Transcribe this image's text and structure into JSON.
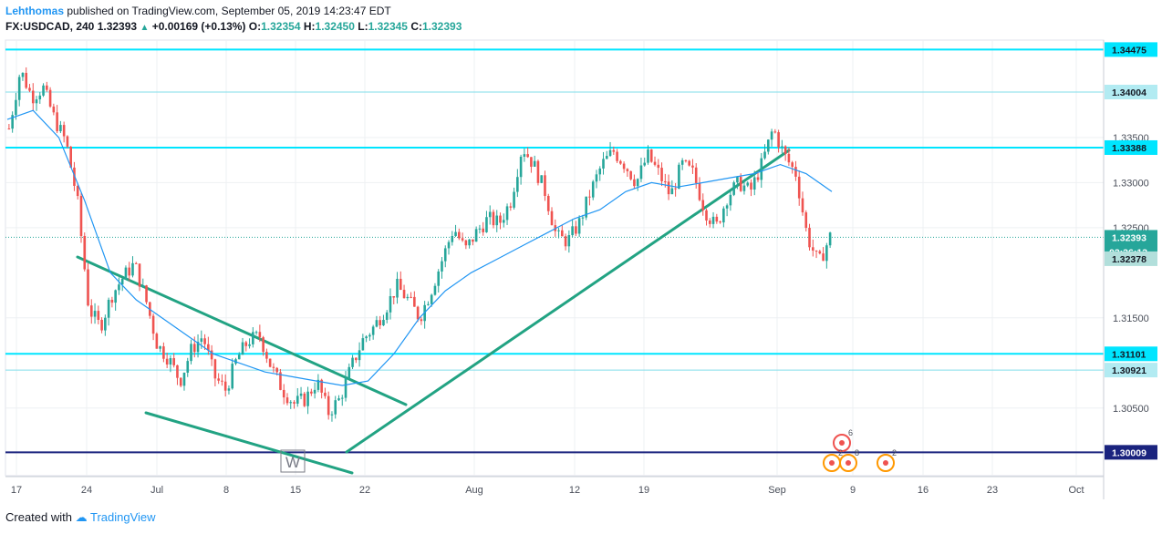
{
  "header": {
    "author": "Lehthomas",
    "published_text": "published on TradingView.com, September 05, 2019 14:23:47 EDT",
    "symbol": "FX:USDCAD, 240",
    "last": "1.32393",
    "change": "+0.00169 (+0.13%)",
    "o_label": "O:",
    "o_value": "1.32354",
    "h_label": "H:",
    "h_value": "1.32450",
    "l_label": "L:",
    "l_value": "1.32345",
    "c_label": "C:",
    "c_value": "1.32393"
  },
  "footer": {
    "created_with": "Created with",
    "brand": "TradingView"
  },
  "colors": {
    "up": "#26a69a",
    "down": "#ef5350",
    "ma": "#2196f3",
    "level": "#00e5ff",
    "level_thin": "#80deea",
    "support": "#1a237e",
    "trendline": "#22a383",
    "price_line": "#26a69a"
  },
  "chart_data": {
    "type": "candlestick",
    "symbol": "USDCAD",
    "interval": "240",
    "ylim": [
      1.2975,
      1.3458
    ],
    "y_ticks": [
      "1.30500",
      "1.31500",
      "1.32500",
      "1.33000",
      "1.33500"
    ],
    "x_ticks": [
      "17",
      "24",
      "Jul",
      "8",
      "15",
      "22",
      "Aug",
      "12",
      "19",
      "Sep",
      "9",
      "16",
      "23",
      "Oct"
    ],
    "price_levels": [
      {
        "label": "1.34475",
        "value": 1.34475,
        "style": "thick"
      },
      {
        "label": "1.34004",
        "value": 1.34004,
        "style": "thin"
      },
      {
        "label": "1.33388",
        "value": 1.33388,
        "style": "thick"
      },
      {
        "label": "1.31101",
        "value": 1.31101,
        "style": "thick"
      },
      {
        "label": "1.30921",
        "value": 1.30921,
        "style": "thin"
      },
      {
        "label": "1.30009",
        "value": 1.30009,
        "style": "support"
      }
    ],
    "last_price": {
      "label": "1.32393",
      "value": 1.32393,
      "countdown": "02:36:13"
    },
    "secondary_price": {
      "label": "1.32378",
      "value": 1.32378
    },
    "price_path": [
      [
        1.336,
        1.3425,
        1.3395,
        1.3405,
        1.337,
        1.3345,
        1.328,
        1.316,
        1.314,
        1.3175,
        1.3195,
        1.321,
        1.317,
        1.312,
        1.3105,
        1.308,
        1.3115,
        1.313,
        1.3085,
        1.307,
        1.3105,
        1.3125,
        1.313,
        1.3095,
        1.307,
        1.3055,
        1.306,
        1.308,
        1.3045,
        1.306,
        1.3095,
        1.3125,
        1.314,
        1.316,
        1.3185,
        1.317,
        1.315,
        1.318,
        1.3215,
        1.325,
        1.3225,
        1.3245,
        1.326,
        1.3255,
        1.328,
        1.334,
        1.332,
        1.329,
        1.324,
        1.3235,
        1.3255,
        1.329,
        1.332,
        1.3335,
        1.332,
        1.33,
        1.333,
        1.331,
        1.3285,
        1.332,
        1.331,
        1.327,
        1.325,
        1.3285,
        1.33,
        1.329,
        1.332,
        1.336,
        1.333,
        1.331,
        1.324,
        1.321,
        1.324
      ]
    ],
    "moving_average": [
      1.337,
      1.338,
      1.335,
      1.328,
      1.32,
      1.317,
      1.315,
      1.313,
      1.311,
      1.31,
      1.309,
      1.3085,
      1.308,
      1.3075,
      1.308,
      1.311,
      1.315,
      1.318,
      1.32,
      1.3215,
      1.323,
      1.3245,
      1.326,
      1.327,
      1.329,
      1.33,
      1.3295,
      1.33,
      1.3305,
      1.331,
      1.332,
      1.331,
      1.329
    ],
    "annotations": [
      {
        "text": "W",
        "date": "15"
      }
    ],
    "event_badges": [
      "6",
      "2",
      "8",
      "2"
    ]
  }
}
